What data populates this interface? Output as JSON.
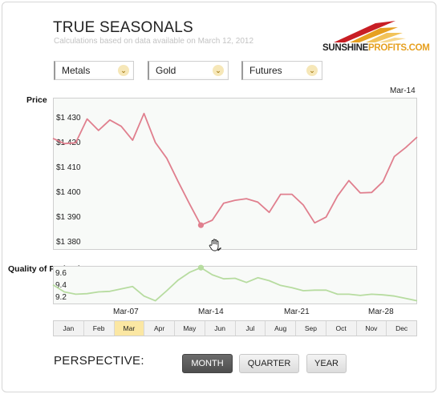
{
  "header": {
    "title": "TRUE SEASONALS",
    "subtitle": "Calculations based on data available on March 12, 2012",
    "logo_primary": "SUNSHINE",
    "logo_secondary": "PROFITS.COM"
  },
  "filters": [
    {
      "label": "Metals"
    },
    {
      "label": "Gold"
    },
    {
      "label": "Futures"
    }
  ],
  "colors": {
    "price_line": "#e07f8e",
    "quality_line": "#b7dca0",
    "marker_price": "#e07f8e",
    "marker_quality": "#b7dca0",
    "active_month": "#fbe7a3"
  },
  "chart_data": [
    {
      "type": "line",
      "ylabel": "Price",
      "x_ticks": [
        "Mar-07",
        "Mar-14",
        "Mar-21",
        "Mar-28"
      ],
      "top_label": "Mar-14",
      "y_ticks": [
        "$1 430",
        "$1 420",
        "$1 410",
        "$1 400",
        "$1 390",
        "$1 380"
      ],
      "y_tick_values": [
        1430,
        1420,
        1410,
        1400,
        1390,
        1380
      ],
      "ylim": [
        1377,
        1435
      ],
      "xlim": [
        0,
        32
      ],
      "series": [
        {
          "x": [
            0,
            1,
            2,
            3,
            4,
            5,
            6,
            7,
            8,
            9,
            10,
            11,
            12,
            13,
            14,
            15,
            16,
            17,
            18,
            19,
            20,
            21,
            22,
            23,
            24,
            25,
            26,
            27,
            28,
            29,
            30,
            31,
            32
          ],
          "values": [
            1419.5,
            1417.5,
            1417.8,
            1426.9,
            1422.5,
            1426.5,
            1424.1,
            1418.8,
            1429.0,
            1417.9,
            1411.9,
            1403.0,
            1394.5,
            1386.4,
            1388.3,
            1394.8,
            1395.9,
            1396.5,
            1395.2,
            1391.3,
            1398.2,
            1398.2,
            1394.1,
            1387.3,
            1389.5,
            1397.5,
            1403.4,
            1398.7,
            1398.9,
            1403.0,
            1412.6,
            1416.0,
            1420.0
          ]
        }
      ],
      "highlight_point": {
        "x": 13,
        "value": 1386.4
      }
    },
    {
      "type": "line",
      "ylabel": "Quality of Projection",
      "y_ticks": [
        "9.6",
        "9.4",
        "9.2"
      ],
      "y_tick_values": [
        9.6,
        9.4,
        9.2
      ],
      "ylim": [
        9.1,
        9.75
      ],
      "xlim": [
        0,
        32
      ],
      "series": [
        {
          "x": [
            0,
            1,
            2,
            3,
            4,
            5,
            6,
            7,
            8,
            9,
            10,
            11,
            12,
            13,
            14,
            15,
            16,
            17,
            18,
            19,
            20,
            21,
            22,
            23,
            24,
            25,
            26,
            27,
            28,
            29,
            30,
            31,
            32
          ],
          "values": [
            9.43,
            9.31,
            9.27,
            9.28,
            9.31,
            9.32,
            9.36,
            9.4,
            9.24,
            9.16,
            9.33,
            9.51,
            9.64,
            9.72,
            9.6,
            9.53,
            9.54,
            9.47,
            9.55,
            9.5,
            9.42,
            9.38,
            9.33,
            9.34,
            9.34,
            9.27,
            9.27,
            9.25,
            9.27,
            9.26,
            9.24,
            9.2,
            9.16
          ]
        }
      ],
      "highlight_point": {
        "x": 13,
        "value": 9.72
      }
    }
  ],
  "months": [
    "Jan",
    "Feb",
    "Mar",
    "Apr",
    "May",
    "Jun",
    "Jul",
    "Aug",
    "Sep",
    "Oct",
    "Nov",
    "Dec"
  ],
  "active_month": "Mar",
  "perspective": {
    "label": "PERSPECTIVE:",
    "options": [
      "MONTH",
      "QUARTER",
      "YEAR"
    ],
    "selected": "MONTH"
  }
}
